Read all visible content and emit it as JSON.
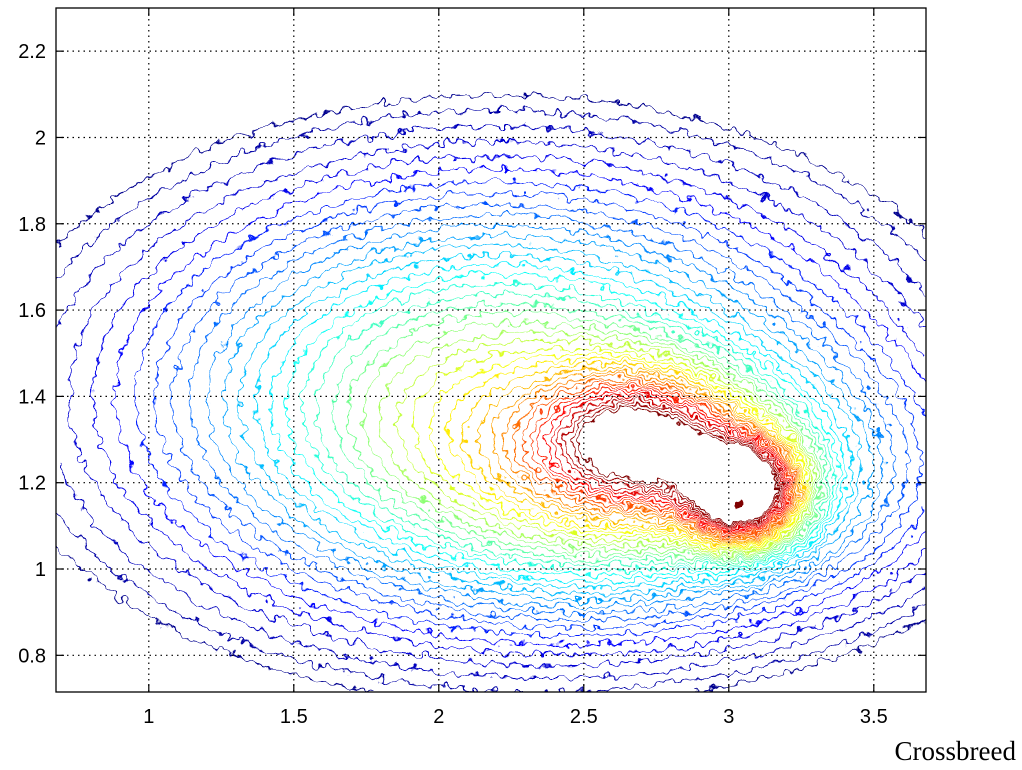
{
  "chart_data": {
    "type": "contour",
    "title": "",
    "xlabel": "Crossbreed",
    "ylabel": "",
    "xlim": [
      0.68,
      3.68
    ],
    "ylim": [
      0.715,
      2.3
    ],
    "grid": true,
    "grid_style": "dotted",
    "x_ticks": [
      {
        "value": 1,
        "label": "1"
      },
      {
        "value": 1.5,
        "label": "1.5"
      },
      {
        "value": 2,
        "label": "2"
      },
      {
        "value": 2.5,
        "label": "2.5"
      },
      {
        "value": 3,
        "label": "3"
      },
      {
        "value": 3.5,
        "label": "3.5"
      }
    ],
    "y_ticks": [
      {
        "value": 0.8,
        "label": "0.8"
      },
      {
        "value": 1,
        "label": "1"
      },
      {
        "value": 1.2,
        "label": "1.2"
      },
      {
        "value": 1.4,
        "label": "1.4"
      },
      {
        "value": 1.6,
        "label": "1.6"
      },
      {
        "value": 1.8,
        "label": "1.8"
      },
      {
        "value": 2,
        "label": "2"
      },
      {
        "value": 2.2,
        "label": "2.2"
      }
    ],
    "colormap": [
      "#00008f",
      "#0000ff",
      "#0080ff",
      "#00ffff",
      "#80ff80",
      "#ffff00",
      "#ff8000",
      "#ff0000",
      "#800000"
    ],
    "density_components": [
      {
        "cx": 2.2,
        "cy": 1.4,
        "sx": 0.75,
        "sy": 0.3,
        "weight": 0.45
      },
      {
        "cx": 2.7,
        "cy": 1.3,
        "sx": 0.22,
        "sy": 0.1,
        "weight": 0.45
      },
      {
        "cx": 3.05,
        "cy": 1.18,
        "sx": 0.13,
        "sy": 0.08,
        "weight": 0.75
      },
      {
        "cx": 2.75,
        "cy": 1.2,
        "sx": 0.55,
        "sy": 0.18,
        "weight": 0.3
      }
    ],
    "peak": {
      "x": 3.04,
      "y": 1.15
    }
  }
}
